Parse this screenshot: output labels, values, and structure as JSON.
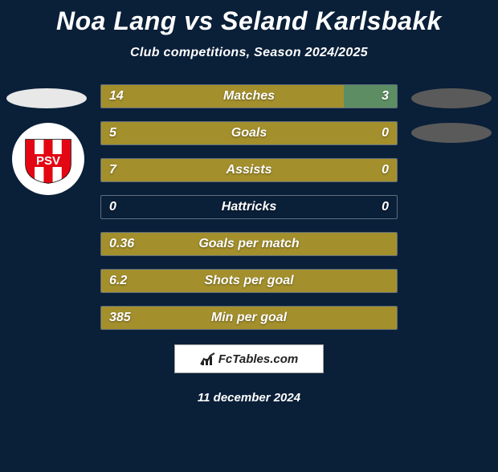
{
  "title": "Noa Lang vs Seland Karlsbakk",
  "subtitle": "Club competitions, Season 2024/2025",
  "date": "11 december 2024",
  "brand": "FcTables.com",
  "colors": {
    "background": "#0a1f38",
    "bar_left": "#a38f2c",
    "bar_right": "#5d8d62",
    "highlight": "#bda637",
    "left_ellipse": "#e8e8e8",
    "right_ellipse": "#5a5a5a",
    "club_ring": "#ffffff",
    "psv_red": "#e30613",
    "psv_text": "#ffffff"
  },
  "rows": [
    {
      "label": "Matches",
      "left": "14",
      "right": "3",
      "left_pct": 82,
      "right_pct": 18,
      "show_right": true
    },
    {
      "label": "Goals",
      "left": "5",
      "right": "0",
      "left_pct": 100,
      "right_pct": 0,
      "show_right": true
    },
    {
      "label": "Assists",
      "left": "7",
      "right": "0",
      "left_pct": 100,
      "right_pct": 0,
      "show_right": true
    },
    {
      "label": "Hattricks",
      "left": "0",
      "right": "0",
      "left_pct": 0,
      "right_pct": 0,
      "show_right": true
    },
    {
      "label": "Goals per match",
      "left": "0.36",
      "right": "",
      "left_pct": 100,
      "right_pct": 0,
      "show_right": false
    },
    {
      "label": "Shots per goal",
      "left": "6.2",
      "right": "",
      "left_pct": 100,
      "right_pct": 0,
      "show_right": false
    },
    {
      "label": "Min per goal",
      "left": "385",
      "right": "",
      "left_pct": 100,
      "right_pct": 0,
      "show_right": false
    }
  ],
  "club": {
    "abbr": "PSV"
  }
}
